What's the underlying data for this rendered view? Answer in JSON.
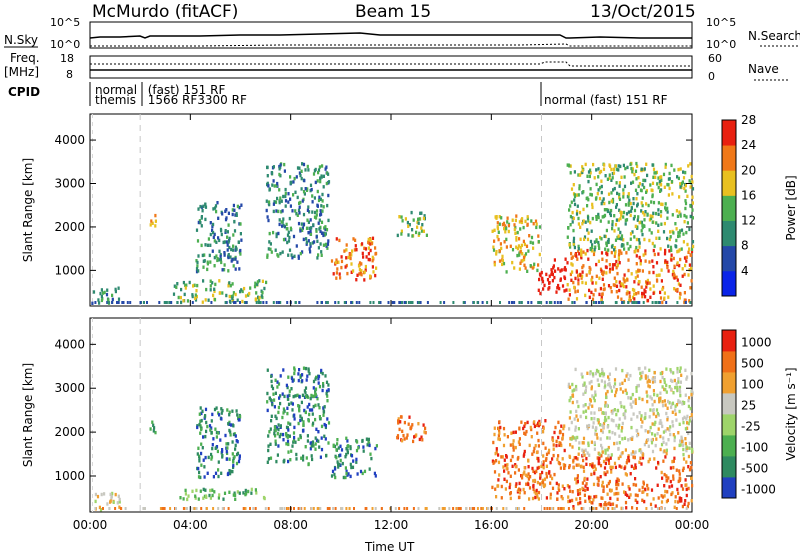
{
  "header": {
    "station": "McMurdo (fitACF)",
    "beam": "Beam 15",
    "date": "13/Oct/2015"
  },
  "strips": {
    "nsky_label": "N.Sky",
    "nsearch_label": "N.Search",
    "nsky_ticks": [
      "10^5",
      "10^0"
    ],
    "nsearch_ticks": [
      "10^5",
      "10^0"
    ],
    "freq_label_1": "Freq.",
    "freq_label_2": "[MHz]",
    "freq_ticks": [
      "18",
      "8"
    ],
    "nave_label": "Nave",
    "nave_ticks": [
      "60",
      "0"
    ],
    "cpid_label": "CPID"
  },
  "cpid_annotations": [
    {
      "text": "normal",
      "time": 0.2,
      "row": 1
    },
    {
      "text": "(fast)  151 RF",
      "time": 2.3,
      "row": 1
    },
    {
      "text": "themis",
      "time": 0.2,
      "row": 2
    },
    {
      "text": "1566 RF3300 RF",
      "time": 2.3,
      "row": 2
    },
    {
      "text": "normal  (fast)  151 RF",
      "time": 18.1,
      "row": 2
    }
  ],
  "chart_data": [
    {
      "type": "heatmap",
      "name": "power",
      "ylabel": "Slant Range [km]",
      "xlabel": "Time UT",
      "xlim": [
        0,
        24
      ],
      "ylim": [
        180,
        4600
      ],
      "y_ticks": [
        1000,
        2000,
        3000,
        4000
      ],
      "x_ticks": [
        "00:00",
        "04:00",
        "08:00",
        "12:00",
        "16:00",
        "20:00",
        "00:00"
      ],
      "x_tick_values": [
        0,
        4,
        8,
        12,
        16,
        20,
        24
      ],
      "colorbar": {
        "label": "Power [dB]",
        "ticks": [
          "4",
          "8",
          "12",
          "16",
          "20",
          "24",
          "28"
        ],
        "colors": [
          "#0a24e8",
          "#2448a8",
          "#2e8a70",
          "#4caf50",
          "#e8c020",
          "#f07818",
          "#e82010"
        ]
      },
      "regions": [
        {
          "t0": 0.05,
          "t1": 1.2,
          "r0": 250,
          "r1": 650,
          "level": 2
        },
        {
          "t0": 2.3,
          "t1": 2.6,
          "r0": 1900,
          "r1": 2350,
          "level": 4
        },
        {
          "t0": 3.3,
          "t1": 7.0,
          "r0": 300,
          "r1": 800,
          "level": 3
        },
        {
          "t0": 4.2,
          "t1": 6.0,
          "r0": 1000,
          "r1": 2600,
          "level": 2
        },
        {
          "t0": 7.0,
          "t1": 9.5,
          "r0": 1300,
          "r1": 3500,
          "level": 2
        },
        {
          "t0": 9.6,
          "t1": 11.4,
          "r0": 800,
          "r1": 1800,
          "level": 5
        },
        {
          "t0": 12.2,
          "t1": 13.4,
          "r0": 1800,
          "r1": 2400,
          "level": 3
        },
        {
          "t0": 16.0,
          "t1": 17.9,
          "r0": 1000,
          "r1": 2300,
          "level": 4
        },
        {
          "t0": 17.8,
          "t1": 19.0,
          "r0": 500,
          "r1": 1300,
          "level": 7
        },
        {
          "t0": 19.0,
          "t1": 24.0,
          "r0": 300,
          "r1": 1500,
          "level": 5
        },
        {
          "t0": 19.0,
          "t1": 24.0,
          "r0": 1500,
          "r1": 3500,
          "level": 3
        }
      ]
    },
    {
      "type": "heatmap",
      "name": "velocity",
      "ylabel": "Slant Range [km]",
      "xlabel": "Time UT",
      "xlim": [
        0,
        24
      ],
      "ylim": [
        180,
        4600
      ],
      "y_ticks": [
        1000,
        2000,
        3000,
        4000
      ],
      "x_ticks": [
        "00:00",
        "04:00",
        "08:00",
        "12:00",
        "16:00",
        "20:00",
        "00:00"
      ],
      "x_tick_values": [
        0,
        4,
        8,
        12,
        16,
        20,
        24
      ],
      "colorbar": {
        "label": "Velocity [m s⁻¹]",
        "ticks": [
          "1000",
          "500",
          "100",
          "25",
          "-25",
          "-100",
          "-500",
          "-1000"
        ],
        "colors": [
          "#2040c0",
          "#2e8a60",
          "#4caf50",
          "#9ed46a",
          "#c8c8c0",
          "#f0a030",
          "#f07018",
          "#e82010"
        ]
      },
      "regions": [
        {
          "t0": 0.05,
          "t1": 1.2,
          "r0": 250,
          "r1": 650,
          "level": 4
        },
        {
          "t0": 2.3,
          "t1": 2.6,
          "r0": 2000,
          "r1": 2400,
          "level": 1
        },
        {
          "t0": 3.3,
          "t1": 7.0,
          "r0": 500,
          "r1": 750,
          "level": 2
        },
        {
          "t0": 4.2,
          "t1": 6.0,
          "r0": 1000,
          "r1": 2600,
          "level": 1
        },
        {
          "t0": 7.0,
          "t1": 9.5,
          "r0": 1300,
          "r1": 3500,
          "level": 1
        },
        {
          "t0": 9.6,
          "t1": 11.4,
          "r0": 1000,
          "r1": 1900,
          "level": 1
        },
        {
          "t0": 12.2,
          "t1": 13.4,
          "r0": 1800,
          "r1": 2400,
          "level": 6
        },
        {
          "t0": 16.0,
          "t1": 18.9,
          "r0": 500,
          "r1": 2300,
          "level": 6
        },
        {
          "t0": 19.0,
          "t1": 24.0,
          "r0": 300,
          "r1": 1500,
          "level": 6
        },
        {
          "t0": 19.0,
          "t1": 24.0,
          "r0": 1500,
          "r1": 3500,
          "level": 4
        }
      ]
    }
  ]
}
